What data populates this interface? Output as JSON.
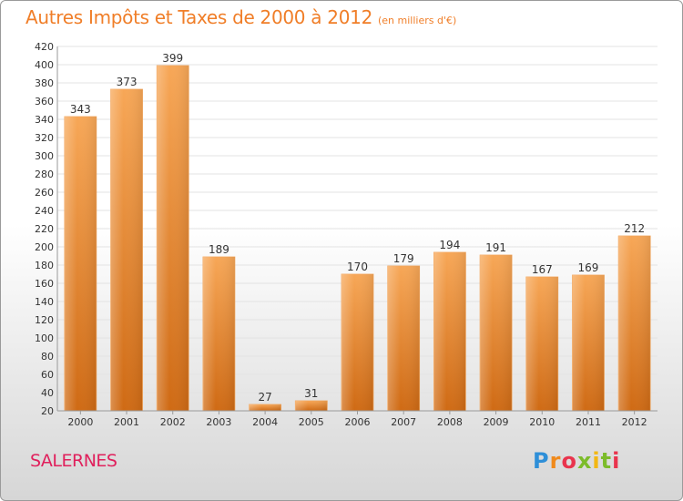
{
  "header": {
    "title": "Autres Impôts et Taxes de 2000 à 2012",
    "unit": "(en milliers d'€)"
  },
  "footer": {
    "city": "SALERNES",
    "logo_text": "Proxiti"
  },
  "colors": {
    "title": "#f07e28",
    "city": "#e0205c",
    "bar_light": "#f7a757",
    "bar_dark": "#cf6a14",
    "grid": "#e3e3e3"
  },
  "chart_data": {
    "type": "bar",
    "title": "Autres Impôts et Taxes de 2000 à 2012",
    "categories": [
      "2000",
      "2001",
      "2002",
      "2003",
      "2004",
      "2005",
      "2006",
      "2007",
      "2008",
      "2009",
      "2010",
      "2011",
      "2012"
    ],
    "values": [
      343,
      373,
      399,
      189,
      27,
      31,
      170,
      179,
      194,
      191,
      167,
      169,
      212
    ],
    "ylim": [
      20,
      420
    ],
    "yticks": [
      20,
      40,
      60,
      80,
      100,
      120,
      140,
      160,
      180,
      200,
      220,
      240,
      260,
      280,
      300,
      320,
      340,
      360,
      380,
      400,
      420
    ],
    "grid": true,
    "legend": "none"
  }
}
